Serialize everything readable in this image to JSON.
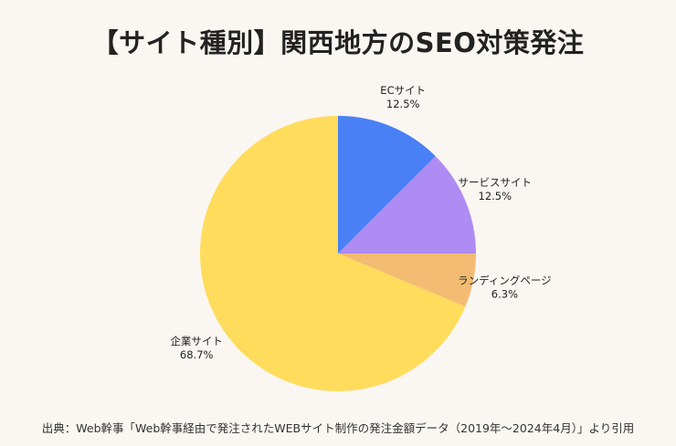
{
  "title": "【サイト種別】関西地方のSEO対策発注",
  "source": "出典：Web幹事「Web幹事経由で発注されたWEBサイト制作の発注金額データ（2019年〜2024年4月）」より引用",
  "chart_data": {
    "type": "pie",
    "title": "【サイト種別】関西地方のSEO対策発注",
    "start_angle_deg": 0,
    "direction": "clockwise",
    "slices": [
      {
        "label": "ECサイト",
        "value": 12.5,
        "pct": "12.5%",
        "color": "#4a80f5"
      },
      {
        "label": "サービスサイト",
        "value": 12.5,
        "pct": "12.5%",
        "color": "#ae8cf4"
      },
      {
        "label": "ランディングページ",
        "value": 6.3,
        "pct": "6.3%",
        "color": "#f3bc72"
      },
      {
        "label": "企業サイト",
        "value": 68.7,
        "pct": "68.7%",
        "color": "#ffdc5c"
      }
    ]
  }
}
